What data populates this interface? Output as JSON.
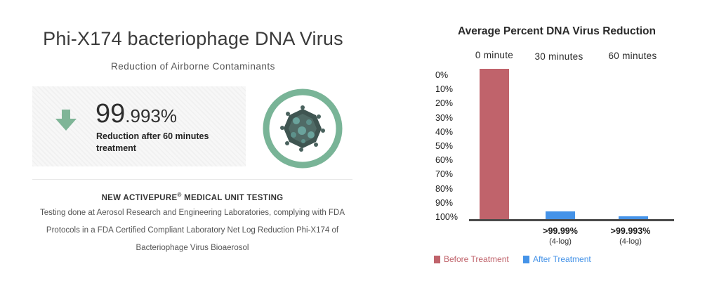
{
  "left": {
    "title": "Phi-X174 bacteriophage DNA Virus",
    "subtitle": "Reduction of Airborne Contaminants",
    "percent_int": "99",
    "percent_dec": ".993%",
    "stat_label": "Reduction after 60 minutes treatment",
    "arrow_color": "#7fb597",
    "ring_color": "#79b497",
    "testing_title_main": "NEW ACTIVEPURE",
    "testing_title_reg": "®",
    "testing_title_tail": " MEDICAL UNIT TESTING",
    "testing_desc": "Testing done at Aerosol Research and Engineering Laboratories, complying with FDA Protocols in a FDA Certified Compliant Laboratory Net Log Reduction Phi-X174 of Bacteriophage Virus Bioaerosol"
  },
  "chart_data": {
    "type": "bar",
    "title": "Average Percent DNA Virus Reduction",
    "categories": [
      "0 minute",
      "30 minutes",
      "60 minutes"
    ],
    "y_axis": {
      "ticks": [
        "0%",
        "10%",
        "20%",
        "30%",
        "40%",
        "50%",
        "60%",
        "70%",
        "80%",
        "90%",
        "100%"
      ],
      "range": [
        0,
        100
      ],
      "direction": "inverted (0% at top, 100% at bottom)"
    },
    "series": [
      {
        "name": "Before Treatment",
        "color": "#c0636b",
        "values": [
          100,
          null,
          null
        ]
      },
      {
        "name": "After Treatment",
        "color": "#4593e8",
        "values": [
          null,
          5,
          2
        ]
      }
    ],
    "annotations": [
      {
        "category": "30 minutes",
        "reduction": ">99.99%",
        "log": "(4-log)"
      },
      {
        "category": "60 minutes",
        "reduction": ">99.993%",
        "log": "(4-log)"
      }
    ],
    "legend_placement": "bottom-left",
    "grid": false
  }
}
